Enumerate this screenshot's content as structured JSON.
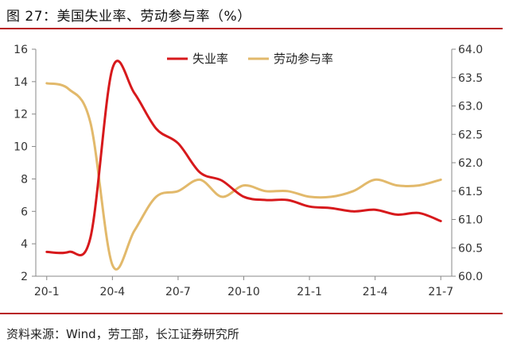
{
  "title": "图 27：美国失业率、劳动参与率（%）",
  "source": "资料来源：Wind，劳工部，长江证券研究所",
  "colors": {
    "accent": "#b81c22",
    "unemployment": "#d7191c",
    "participation": "#e2b96b",
    "axis": "#888888"
  },
  "chart_data": {
    "type": "line",
    "title": "美国失业率、劳动参与率（%）",
    "x_tick_labels": [
      "20-1",
      "20-4",
      "20-7",
      "20-10",
      "21-1",
      "21-4",
      "21-7"
    ],
    "y_left": {
      "ylim": [
        2,
        16
      ],
      "ticks": [
        "2",
        "4",
        "6",
        "8",
        "10",
        "12",
        "14",
        "16"
      ]
    },
    "y_right": {
      "ylim": [
        60.0,
        64.0
      ],
      "ticks": [
        "60.0",
        "60.5",
        "61.0",
        "61.5",
        "62.0",
        "62.5",
        "63.0",
        "63.5",
        "64.0"
      ]
    },
    "legend_position": "top-center",
    "grid": false,
    "months": [
      "2020-01",
      "2020-02",
      "2020-03",
      "2020-04",
      "2020-05",
      "2020-06",
      "2020-07",
      "2020-08",
      "2020-09",
      "2020-10",
      "2020-11",
      "2020-12",
      "2021-01",
      "2021-02",
      "2021-03",
      "2021-04",
      "2021-05",
      "2021-06",
      "2021-07"
    ],
    "series": [
      {
        "name": "失业率",
        "axis": "left",
        "color": "#d7191c",
        "values": [
          3.5,
          3.5,
          4.4,
          14.8,
          13.3,
          11.1,
          10.2,
          8.4,
          7.9,
          6.9,
          6.7,
          6.7,
          6.3,
          6.2,
          6.0,
          6.1,
          5.8,
          5.9,
          5.4
        ]
      },
      {
        "name": "劳动参与率",
        "axis": "right",
        "color": "#e2b96b",
        "values": [
          63.4,
          63.3,
          62.7,
          60.2,
          60.8,
          61.4,
          61.5,
          61.7,
          61.4,
          61.6,
          61.5,
          61.5,
          61.4,
          61.4,
          61.5,
          61.7,
          61.6,
          61.6,
          61.7
        ]
      }
    ]
  }
}
